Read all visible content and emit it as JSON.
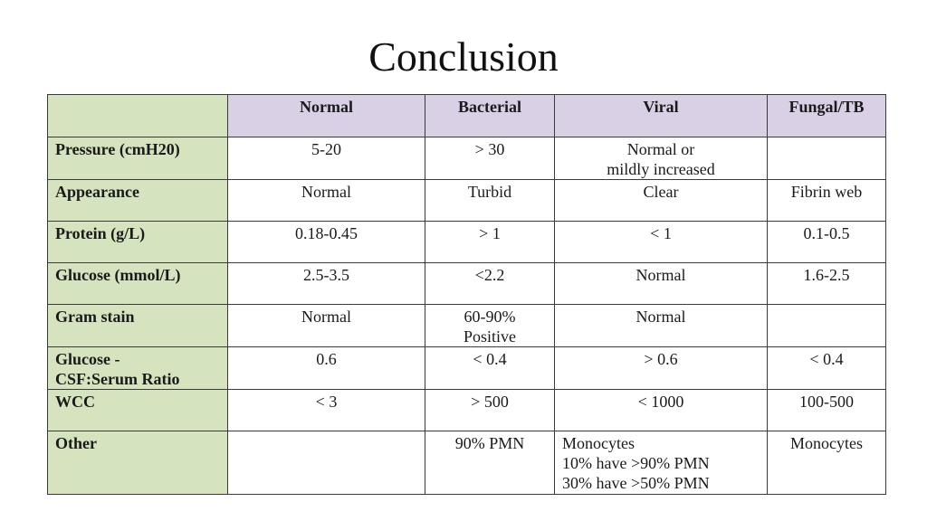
{
  "slide": {
    "title": "Conclusion"
  },
  "table": {
    "headers": [
      "",
      "Normal",
      "Bacterial",
      "Viral",
      "Fungal/TB"
    ],
    "rows": [
      {
        "label": [
          "Pressure (cmH20)"
        ],
        "cells": [
          [
            "5-20"
          ],
          [
            "> 30"
          ],
          [
            "Normal or",
            "mildly increased"
          ],
          [
            ""
          ]
        ]
      },
      {
        "label": [
          "Appearance"
        ],
        "cells": [
          [
            "Normal"
          ],
          [
            "Turbid"
          ],
          [
            "Clear"
          ],
          [
            "Fibrin web"
          ]
        ]
      },
      {
        "label": [
          "Protein (g/L)"
        ],
        "cells": [
          [
            "0.18-0.45"
          ],
          [
            "> 1"
          ],
          [
            "< 1"
          ],
          [
            "0.1-0.5"
          ]
        ]
      },
      {
        "label": [
          "Glucose (mmol/L)"
        ],
        "cells": [
          [
            "2.5-3.5"
          ],
          [
            "<2.2"
          ],
          [
            "Normal"
          ],
          [
            "1.6-2.5"
          ]
        ]
      },
      {
        "label": [
          "Gram stain"
        ],
        "cells": [
          [
            "Normal"
          ],
          [
            "60-90%",
            "Positive"
          ],
          [
            "Normal"
          ],
          [
            ""
          ]
        ]
      },
      {
        "label": [
          "Glucose -",
          "CSF:Serum Ratio"
        ],
        "cells": [
          [
            "0.6"
          ],
          [
            "< 0.4"
          ],
          [
            "> 0.6"
          ],
          [
            "< 0.4"
          ]
        ]
      },
      {
        "label": [
          "WCC"
        ],
        "cells": [
          [
            "< 3"
          ],
          [
            "> 500"
          ],
          [
            "< 1000"
          ],
          [
            "100-500"
          ]
        ]
      },
      {
        "label": [
          "Other"
        ],
        "cells": [
          [
            ""
          ],
          [
            "90% PMN"
          ],
          [
            "Monocytes",
            "10% have >90% PMN",
            "30% have >50% PMN"
          ],
          [
            "Monocytes"
          ]
        ]
      }
    ]
  }
}
